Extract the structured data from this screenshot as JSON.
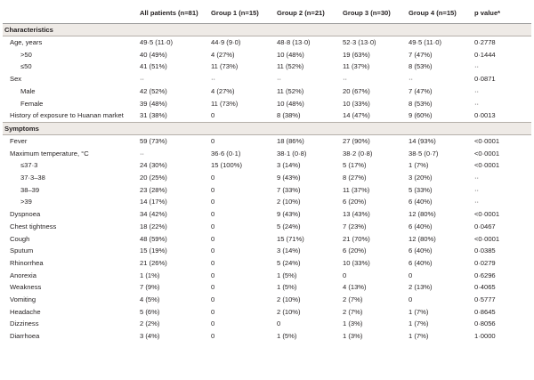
{
  "headers": [
    "",
    "All patients (n=81)",
    "Group 1 (n=15)",
    "Group 2 (n=21)",
    "Group 3 (n=30)",
    "Group 4 (n=15)",
    "p value*"
  ],
  "sections": [
    {
      "title": "Characteristics",
      "rows": [
        {
          "label": "Age, years",
          "sub": false,
          "values": [
            "49·5 (11·0)",
            "44·9 (9·0)",
            "48·8 (13·0)",
            "52·3 (13·0)",
            "49·5 (11·0)",
            "0·2778"
          ]
        },
        {
          "label": ">50",
          "sub": true,
          "values": [
            "40 (49%)",
            "4 (27%)",
            "10 (48%)",
            "19 (63%)",
            "7 (47%)",
            "0·1444"
          ]
        },
        {
          "label": "≤50",
          "sub": true,
          "values": [
            "41 (51%)",
            "11 (73%)",
            "11 (52%)",
            "11 (37%)",
            "8 (53%)",
            "··"
          ]
        },
        {
          "label": "Sex",
          "sub": false,
          "values": [
            "··",
            "··",
            "··",
            "··",
            "··",
            "0·0871"
          ]
        },
        {
          "label": "Male",
          "sub": true,
          "values": [
            "42 (52%)",
            "4 (27%)",
            "11 (52%)",
            "20 (67%)",
            "7 (47%)",
            "··"
          ]
        },
        {
          "label": "Female",
          "sub": true,
          "values": [
            "39 (48%)",
            "11 (73%)",
            "10 (48%)",
            "10 (33%)",
            "8 (53%)",
            "··"
          ]
        },
        {
          "label": "History of exposure to Huanan market",
          "sub": false,
          "values": [
            "31 (38%)",
            "0",
            "8 (38%)",
            "14 (47%)",
            "9 (60%)",
            "0·0013"
          ]
        }
      ]
    },
    {
      "title": "Symptoms",
      "rows": [
        {
          "label": "Fever",
          "sub": false,
          "values": [
            "59 (73%)",
            "0",
            "18 (86%)",
            "27 (90%)",
            "14 (93%)",
            "<0·0001"
          ]
        },
        {
          "label": "Maximum temperature, °C",
          "sub": false,
          "values": [
            "··",
            "36·6 (0·1)",
            "38·1 (0·8)",
            "38·2 (0·8)",
            "38·5 (0·7)",
            "<0·0001"
          ]
        },
        {
          "label": "≤37·3",
          "sub": true,
          "values": [
            "24 (30%)",
            "15 (100%)",
            "3 (14%)",
            "5 (17%)",
            "1 (7%)",
            "<0·0001"
          ]
        },
        {
          "label": "37·3–38",
          "sub": true,
          "values": [
            "20 (25%)",
            "0",
            "9 (43%)",
            "8 (27%)",
            "3 (20%)",
            "··"
          ]
        },
        {
          "label": "38–39",
          "sub": true,
          "values": [
            "23 (28%)",
            "0",
            "7 (33%)",
            "11 (37%)",
            "5 (33%)",
            "··"
          ]
        },
        {
          "label": ">39",
          "sub": true,
          "values": [
            "14 (17%)",
            "0",
            "2 (10%)",
            "6 (20%)",
            "6 (40%)",
            "··"
          ]
        },
        {
          "label": "Dyspnoea",
          "sub": false,
          "values": [
            "34 (42%)",
            "0",
            "9 (43%)",
            "13 (43%)",
            "12 (80%)",
            "<0·0001"
          ]
        },
        {
          "label": "Chest tightness",
          "sub": false,
          "values": [
            "18 (22%)",
            "0",
            "5 (24%)",
            "7 (23%)",
            "6 (40%)",
            "0·0467"
          ]
        },
        {
          "label": "Cough",
          "sub": false,
          "values": [
            "48 (59%)",
            "0",
            "15 (71%)",
            "21 (70%)",
            "12 (80%)",
            "<0·0001"
          ]
        },
        {
          "label": "Sputum",
          "sub": false,
          "values": [
            "15 (19%)",
            "0",
            "3 (14%)",
            "6 (20%)",
            "6 (40%)",
            "0·0385"
          ]
        },
        {
          "label": "Rhinorrhea",
          "sub": false,
          "values": [
            "21 (26%)",
            "0",
            "5 (24%)",
            "10 (33%)",
            "6 (40%)",
            "0·0279"
          ]
        },
        {
          "label": "Anorexia",
          "sub": false,
          "values": [
            "1 (1%)",
            "0",
            "1 (5%)",
            "0",
            "0",
            "0·6296"
          ]
        },
        {
          "label": "Weakness",
          "sub": false,
          "values": [
            "7 (9%)",
            "0",
            "1 (5%)",
            "4 (13%)",
            "2 (13%)",
            "0·4065"
          ]
        },
        {
          "label": "Vomiting",
          "sub": false,
          "values": [
            "4 (5%)",
            "0",
            "2 (10%)",
            "2 (7%)",
            "0",
            "0·5777"
          ]
        },
        {
          "label": "Headache",
          "sub": false,
          "values": [
            "5 (6%)",
            "0",
            "2 (10%)",
            "2 (7%)",
            "1 (7%)",
            "0·8645"
          ]
        },
        {
          "label": "Dizziness",
          "sub": false,
          "values": [
            "2 (2%)",
            "0",
            "0",
            "1 (3%)",
            "1 (7%)",
            "0·8056"
          ]
        },
        {
          "label": "Diarrhoea",
          "sub": false,
          "values": [
            "3 (4%)",
            "0",
            "1 (5%)",
            "1 (3%)",
            "1 (7%)",
            "1·0000"
          ]
        }
      ]
    }
  ]
}
